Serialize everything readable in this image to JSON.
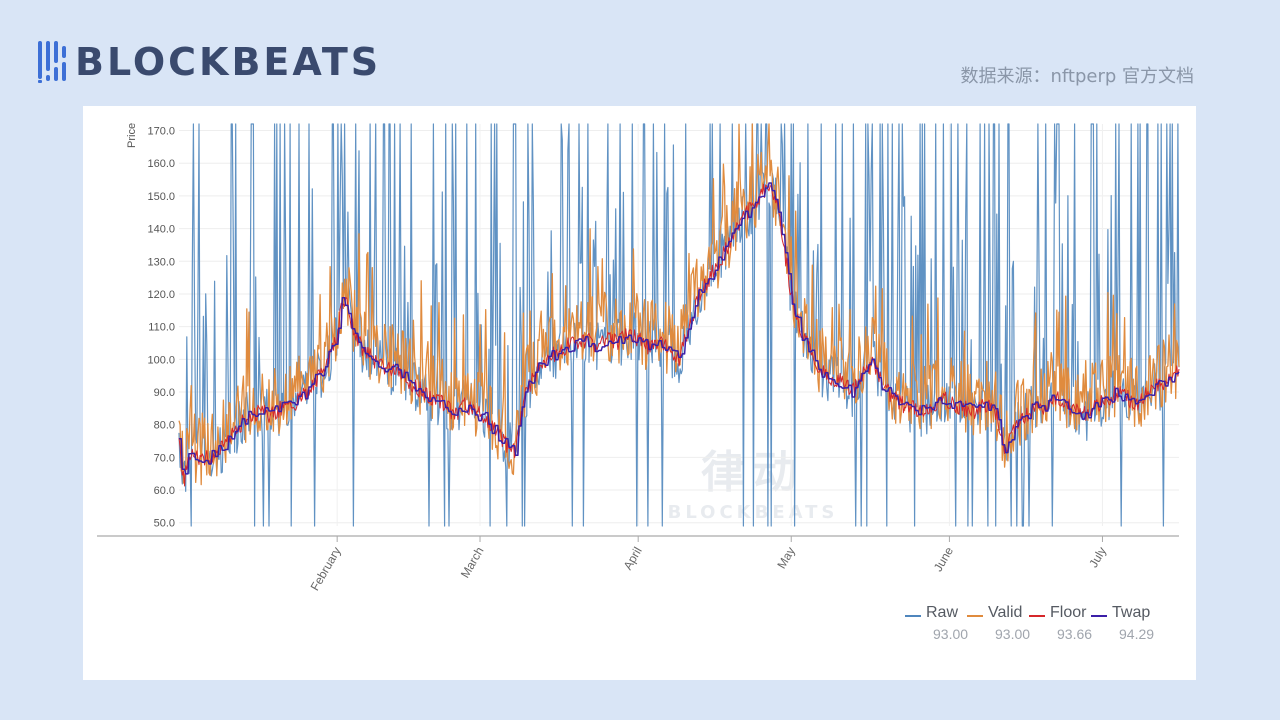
{
  "brand": {
    "name": "BLOCKBEATS",
    "accent": "#3d6fd6"
  },
  "source_note": "数据来源：nftperp 官方文档",
  "watermark": {
    "big": "律动",
    "small": "BLOCKBEATS"
  },
  "chart_data": {
    "type": "line",
    "title": "",
    "xlabel": "",
    "ylabel": "Price",
    "ylim": [
      49,
      172
    ],
    "yticks": [
      "50.0",
      "60.0",
      "70.0",
      "80.0",
      "90.0",
      "100.0",
      "110.0",
      "120.0",
      "130.0",
      "140.0",
      "150.0",
      "160.0",
      "170.0"
    ],
    "ytick_values": [
      50,
      60,
      70,
      80,
      90,
      100,
      110,
      120,
      130,
      140,
      150,
      160,
      170
    ],
    "x_months": [
      {
        "label": "February",
        "day": 31
      },
      {
        "label": "March",
        "day": 59
      },
      {
        "label": "April",
        "day": 90
      },
      {
        "label": "May",
        "day": 120
      },
      {
        "label": "June",
        "day": 151
      },
      {
        "label": "July",
        "day": 181
      }
    ],
    "x_range_days": [
      0,
      196
    ],
    "twap_anchor_days": [
      0,
      1,
      2,
      3,
      4,
      6,
      8,
      10,
      12,
      14,
      16,
      18,
      20,
      22,
      24,
      26,
      28,
      30,
      31,
      32,
      33,
      34,
      36,
      38,
      40,
      42,
      44,
      46,
      48,
      50,
      52,
      54,
      56,
      58,
      60,
      62,
      64,
      66,
      68,
      70,
      72,
      74,
      76,
      78,
      80,
      82,
      84,
      86,
      88,
      90,
      92,
      94,
      96,
      98,
      100,
      102,
      104,
      106,
      108,
      110,
      112,
      114,
      116,
      117,
      118,
      119,
      120,
      122,
      124,
      126,
      128,
      130,
      132,
      134,
      136,
      138,
      140,
      142,
      144,
      146,
      148,
      150,
      152,
      154,
      156,
      158,
      160,
      162,
      164,
      166,
      168,
      170,
      172,
      174,
      176,
      178,
      180,
      182,
      184,
      186,
      188,
      190,
      192,
      194,
      196
    ],
    "twap_anchor_values": [
      75,
      62,
      72,
      70,
      69,
      70,
      72,
      76,
      80,
      83,
      84,
      83,
      85,
      86,
      88,
      92,
      96,
      103,
      108,
      117,
      118,
      110,
      103,
      100,
      98,
      97,
      95,
      92,
      90,
      88,
      86,
      83,
      86,
      84,
      82,
      78,
      74,
      72,
      90,
      96,
      100,
      102,
      104,
      105,
      106,
      104,
      106,
      105,
      108,
      106,
      104,
      105,
      103,
      100,
      110,
      120,
      125,
      130,
      136,
      142,
      146,
      150,
      154,
      148,
      140,
      130,
      120,
      108,
      102,
      96,
      94,
      93,
      90,
      95,
      99,
      92,
      88,
      86,
      85,
      84,
      86,
      88,
      86,
      85,
      84,
      86,
      84,
      72,
      80,
      83,
      85,
      86,
      88,
      86,
      84,
      83,
      86,
      88,
      90,
      88,
      86,
      90,
      92,
      94,
      96
    ],
    "series": [
      {
        "name": "Raw",
        "color": "#4f86bd",
        "last_value": "93.00"
      },
      {
        "name": "Valid",
        "color": "#e08b3e",
        "last_value": "93.00"
      },
      {
        "name": "Floor",
        "color": "#d6272a",
        "last_value": "93.66"
      },
      {
        "name": "Twap",
        "color": "#3b1fa8",
        "last_value": "94.29"
      }
    ]
  }
}
